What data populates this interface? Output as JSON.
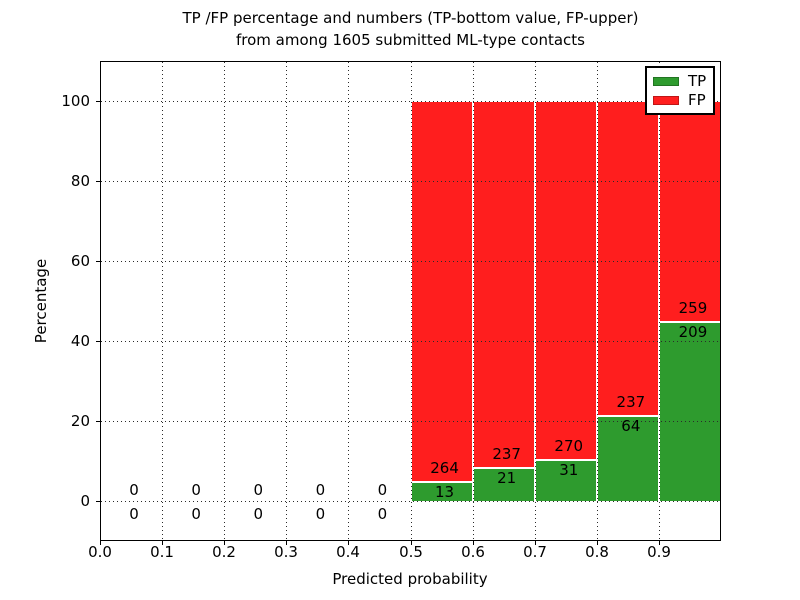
{
  "chart_data": {
    "type": "bar",
    "stacked": true,
    "title_line1": "TP /FP percentage and numbers (TP-bottom value, FP-upper)",
    "title_line2": "from among 1605 submitted ML-type contacts",
    "xlabel": "Predicted probability",
    "ylabel": "Percentage",
    "xlim": [
      0.0,
      1.0
    ],
    "ylim": [
      -10,
      110
    ],
    "xticks": [
      "0.0",
      "0.1",
      "0.2",
      "0.3",
      "0.4",
      "0.5",
      "0.6",
      "0.7",
      "0.8",
      "0.9"
    ],
    "yticks": [
      "0",
      "20",
      "40",
      "60",
      "80",
      "100"
    ],
    "grid": true,
    "bin_width": 0.1,
    "total_contacts": 1605,
    "legend": {
      "position": "upper right",
      "entries": [
        {
          "label": "TP",
          "color": "#2E9B2E"
        },
        {
          "label": "FP",
          "color": "#FF1E1E"
        }
      ]
    },
    "bins": [
      {
        "x": 0.0,
        "tp": 0,
        "fp": 0
      },
      {
        "x": 0.1,
        "tp": 0,
        "fp": 0
      },
      {
        "x": 0.2,
        "tp": 0,
        "fp": 0
      },
      {
        "x": 0.3,
        "tp": 0,
        "fp": 0
      },
      {
        "x": 0.4,
        "tp": 0,
        "fp": 0
      },
      {
        "x": 0.5,
        "tp": 13,
        "fp": 264
      },
      {
        "x": 0.6,
        "tp": 21,
        "fp": 237
      },
      {
        "x": 0.7,
        "tp": 31,
        "fp": 270
      },
      {
        "x": 0.8,
        "tp": 64,
        "fp": 237
      },
      {
        "x": 0.9,
        "tp": 209,
        "fp": 259
      }
    ]
  },
  "colors": {
    "tp": "#2E9B2E",
    "fp": "#FF1E1E",
    "grid": "#2b2b2b",
    "frame": "#000000",
    "background": "#ffffff",
    "text": "#000000"
  }
}
